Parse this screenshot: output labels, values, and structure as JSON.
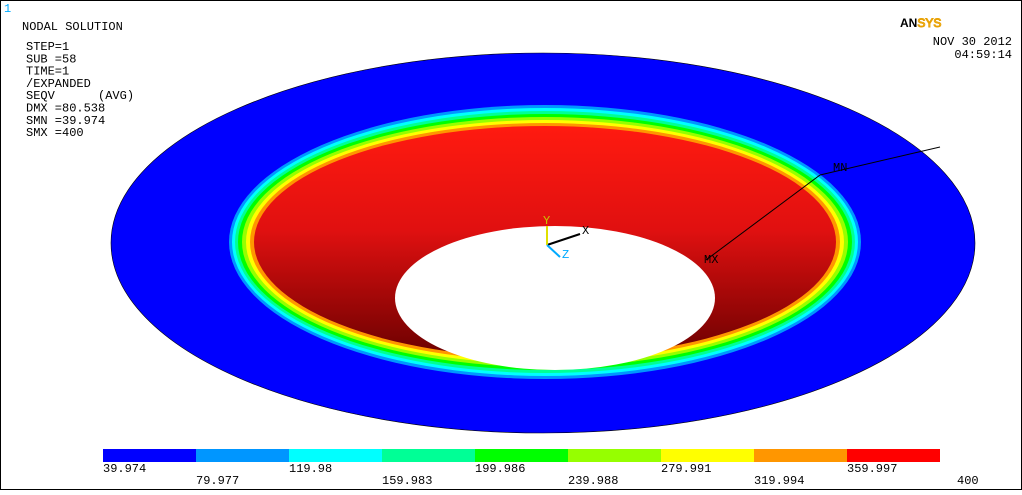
{
  "window_number": "1",
  "title": "NODAL SOLUTION",
  "info": [
    "STEP=1",
    "SUB =58",
    "TIME=1",
    "/EXPANDED",
    "SEQV      (AVG)",
    "DMX =80.538",
    "SMN =39.974",
    "SMX =400"
  ],
  "logo": {
    "bold": "AN",
    "light": "SYS"
  },
  "date": "NOV 30 2012",
  "time": "04:59:14",
  "markers": {
    "min": "MN",
    "max": "MX"
  },
  "triad": {
    "x": "X",
    "y": "Y",
    "z": "Z"
  },
  "legend": {
    "colors": [
      "#0000ff",
      "#0096ff",
      "#00ffff",
      "#00ff96",
      "#00ff00",
      "#96ff00",
      "#ffff00",
      "#ff9600",
      "#ff0000"
    ],
    "labels": [
      "39.974",
      "79.977",
      "119.98",
      "159.983",
      "199.986",
      "239.988",
      "279.991",
      "319.994",
      "359.997",
      "400"
    ]
  }
}
